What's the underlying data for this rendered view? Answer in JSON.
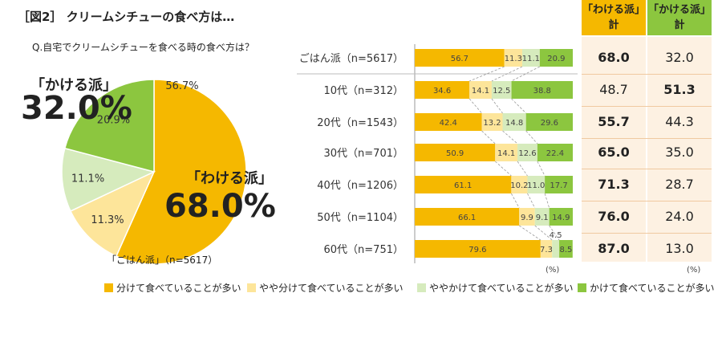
{
  "title": "［図2］ クリームシチューの食べ方は…",
  "question": "Q.自宅でクリームシチューを食べる時の食べ方は？",
  "colors": {
    "wakete": "#f5b800",
    "yaya_wakete": "#fde59a",
    "yaya_kakete": "#d6ebbd",
    "kakete": "#8cc63f"
  },
  "pie": {
    "kakeru_label": "「かける派」",
    "kakeru_pct": "32.0%",
    "wakeru_label": "「わける派」",
    "wakeru_pct": "68.0%",
    "gohan_label": "「ごはん派」（n=5617）"
  },
  "table": {
    "wakeru_header": [
      "「わける派」",
      "計"
    ],
    "kakeru_header": [
      "「かける派」",
      "計"
    ],
    "unit": "(%)"
  },
  "bar_unit": "(%)",
  "legend": [
    "分けて食べていることが多い",
    "やや分けて食べていることが多い",
    "ややかけて食べていることが多い",
    "かけて食べていることが多い"
  ],
  "chart_data": [
    {
      "type": "pie",
      "labels": [
        "分けて食べていることが多い",
        "やや分けて食べていることが多い",
        "ややかけて食べていることが多い",
        "かけて食べていることが多い"
      ],
      "values": [
        56.7,
        11.3,
        11.1,
        20.9
      ],
      "value_labels": [
        "56.7%",
        "11.3%",
        "11.1%",
        "20.9%"
      ]
    },
    {
      "type": "bar",
      "orientation": "horizontal",
      "stacked": true,
      "categories": [
        "ごはん派（n=5617）",
        "10代（n=312）",
        "20代（n=1543）",
        "30代（n=701）",
        "40代（n=1206）",
        "50代（n=1104）",
        "60代（n=751）"
      ],
      "series": [
        {
          "name": "分けて食べていることが多い",
          "values": [
            56.7,
            34.6,
            42.4,
            50.9,
            61.1,
            66.1,
            79.6
          ]
        },
        {
          "name": "やや分けて食べていることが多い",
          "values": [
            11.3,
            14.1,
            13.2,
            14.1,
            10.2,
            9.9,
            7.3
          ]
        },
        {
          "name": "ややかけて食べていることが多い",
          "values": [
            11.1,
            12.5,
            14.8,
            12.6,
            11.0,
            9.1,
            4.5
          ]
        },
        {
          "name": "かけて食べていることが多い",
          "values": [
            20.9,
            38.8,
            29.6,
            22.4,
            17.7,
            14.9,
            8.5
          ]
        }
      ],
      "xlim": [
        0,
        100
      ]
    },
    {
      "type": "table",
      "columns": [
        "「わける派」計",
        "「かける派」計"
      ],
      "rows": [
        {
          "label": "ごはん派（n=5617）",
          "values": [
            "68.0",
            "32.0"
          ],
          "bold": 0
        },
        {
          "label": "10代（n=312）",
          "values": [
            "48.7",
            "51.3"
          ],
          "bold": 1
        },
        {
          "label": "20代（n=1543）",
          "values": [
            "55.7",
            "44.3"
          ],
          "bold": 0
        },
        {
          "label": "30代（n=701）",
          "values": [
            "65.0",
            "35.0"
          ],
          "bold": 0
        },
        {
          "label": "40代（n=1206）",
          "values": [
            "71.3",
            "28.7"
          ],
          "bold": 0
        },
        {
          "label": "50代（n=1104）",
          "values": [
            "76.0",
            "24.0"
          ],
          "bold": 0
        },
        {
          "label": "60代（n=751）",
          "values": [
            "87.0",
            "13.0"
          ],
          "bold": 0
        }
      ]
    }
  ]
}
